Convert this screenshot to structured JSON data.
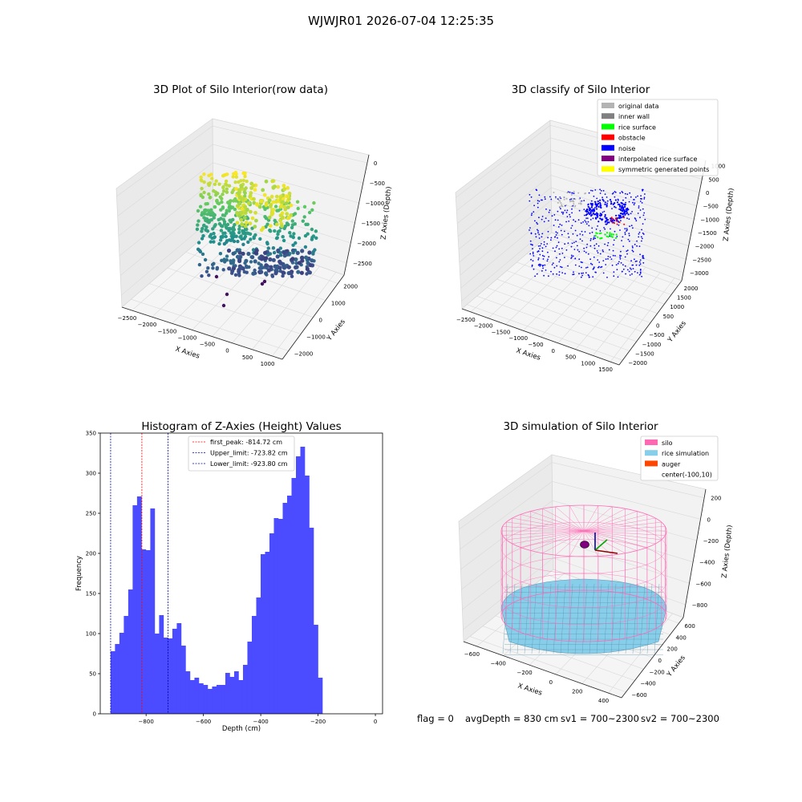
{
  "suptitle": "WJWJR01 2026-07-04 12:25:35",
  "status": {
    "flag": "flag = 0",
    "avg_depth": "avgDepth = 830 cm",
    "sv1": "sv1 = 700~2300",
    "sv2": "sv2 = 700~2300"
  },
  "colors": {
    "hist_bar": "#4b4bff",
    "first_peak": "#ff0000",
    "limit_line": "#0000aa",
    "original_data": "#b3b3b3",
    "inner_wall": "#808080",
    "rice_surface": "#00ff00",
    "obstacle": "#ff0000",
    "noise": "#0000ff",
    "interpolated_rice_surface": "#800080",
    "symmetric_generated_points": "#ffff00",
    "silo": "#ff69b4",
    "rice_simulation": "#87ceeb",
    "auger": "#ff4500"
  },
  "chart_data": [
    {
      "type": "scatter",
      "title": "3D Plot of Silo Interior(row data)",
      "xlabel": "X Axies",
      "ylabel": "Y Axies",
      "zlabel": "Z Axies (Depth)",
      "xticks": [
        "−2500",
        "−2000",
        "−1500",
        "−1000",
        "−500",
        "0",
        "500",
        "1000"
      ],
      "yticks": [
        "−2000",
        "−1000",
        "0",
        "1000",
        "2000"
      ],
      "zticks": [
        "0",
        "−500",
        "−1000",
        "−1500",
        "−2000",
        "−2500"
      ]
    },
    {
      "type": "scatter",
      "title": "3D classify of Silo Interior",
      "xlabel": "X Axies",
      "ylabel": "Y Axies",
      "zlabel": "Z Axies (Depth)",
      "xticks": [
        "−2500",
        "−2000",
        "−1500",
        "−1000",
        "−500",
        "0",
        "500",
        "1000",
        "1500"
      ],
      "yticks": [
        "−2000",
        "−1500",
        "−1000",
        "−500",
        "0",
        "500",
        "1000",
        "1500",
        "2000"
      ],
      "zticks": [
        "1000",
        "500",
        "0",
        "−500",
        "−1000",
        "−1500",
        "−2000",
        "−2500",
        "−3000"
      ],
      "legend": [
        "original data",
        "inner wall",
        "rice surface",
        "obstacle",
        "noise",
        "interpolated rice surface",
        "symmetric generated points"
      ],
      "legend_position": "top-right"
    },
    {
      "type": "bar",
      "title": "Histogram of Z-Axies (Height) Values",
      "xlabel": "Depth (cm)",
      "ylabel": "Frequency",
      "xlim": [
        -960,
        25
      ],
      "ylim": [
        0,
        350
      ],
      "xticks": [
        -800,
        -600,
        -400,
        -200,
        0
      ],
      "yticks": [
        0,
        50,
        100,
        150,
        200,
        250,
        300,
        350
      ],
      "bin_start": -924,
      "bin_width": 15.4,
      "values": [
        78,
        87,
        101,
        122,
        155,
        260,
        271,
        205,
        204,
        256,
        100,
        123,
        95,
        94,
        106,
        113,
        85,
        53,
        42,
        45,
        38,
        36,
        31,
        34,
        36,
        36,
        51,
        46,
        53,
        42,
        61,
        90,
        122,
        145,
        199,
        202,
        225,
        244,
        243,
        263,
        272,
        294,
        321,
        333,
        297,
        232,
        111,
        45
      ],
      "lines": [
        {
          "label": "first_peak: -814.72 cm",
          "x": -814.72,
          "color_key": "first_peak"
        },
        {
          "label": "Upper_limit: -723.82 cm",
          "x": -723.82,
          "color_key": "limit_line"
        },
        {
          "label": "Lower_limit: -923.80 cm",
          "x": -923.8,
          "color_key": "limit_line"
        }
      ],
      "legend_position": "top-center"
    },
    {
      "type": "scatter",
      "title": "3D simulation of Silo Interior",
      "xlabel": "X Axies",
      "ylabel": "Y Axies",
      "zlabel": "Z Axies (Depth)",
      "xticks": [
        "−600",
        "−400",
        "−200",
        "0",
        "200",
        "400"
      ],
      "yticks": [
        "−600",
        "−400",
        "−200",
        "0",
        "200",
        "400",
        "600"
      ],
      "zticks": [
        "200",
        "0",
        "−200",
        "−400",
        "−600",
        "−800"
      ],
      "legend": [
        "silo",
        "rice simulation",
        "auger",
        "center(-100,10)"
      ],
      "legend_position": "top-right"
    }
  ]
}
